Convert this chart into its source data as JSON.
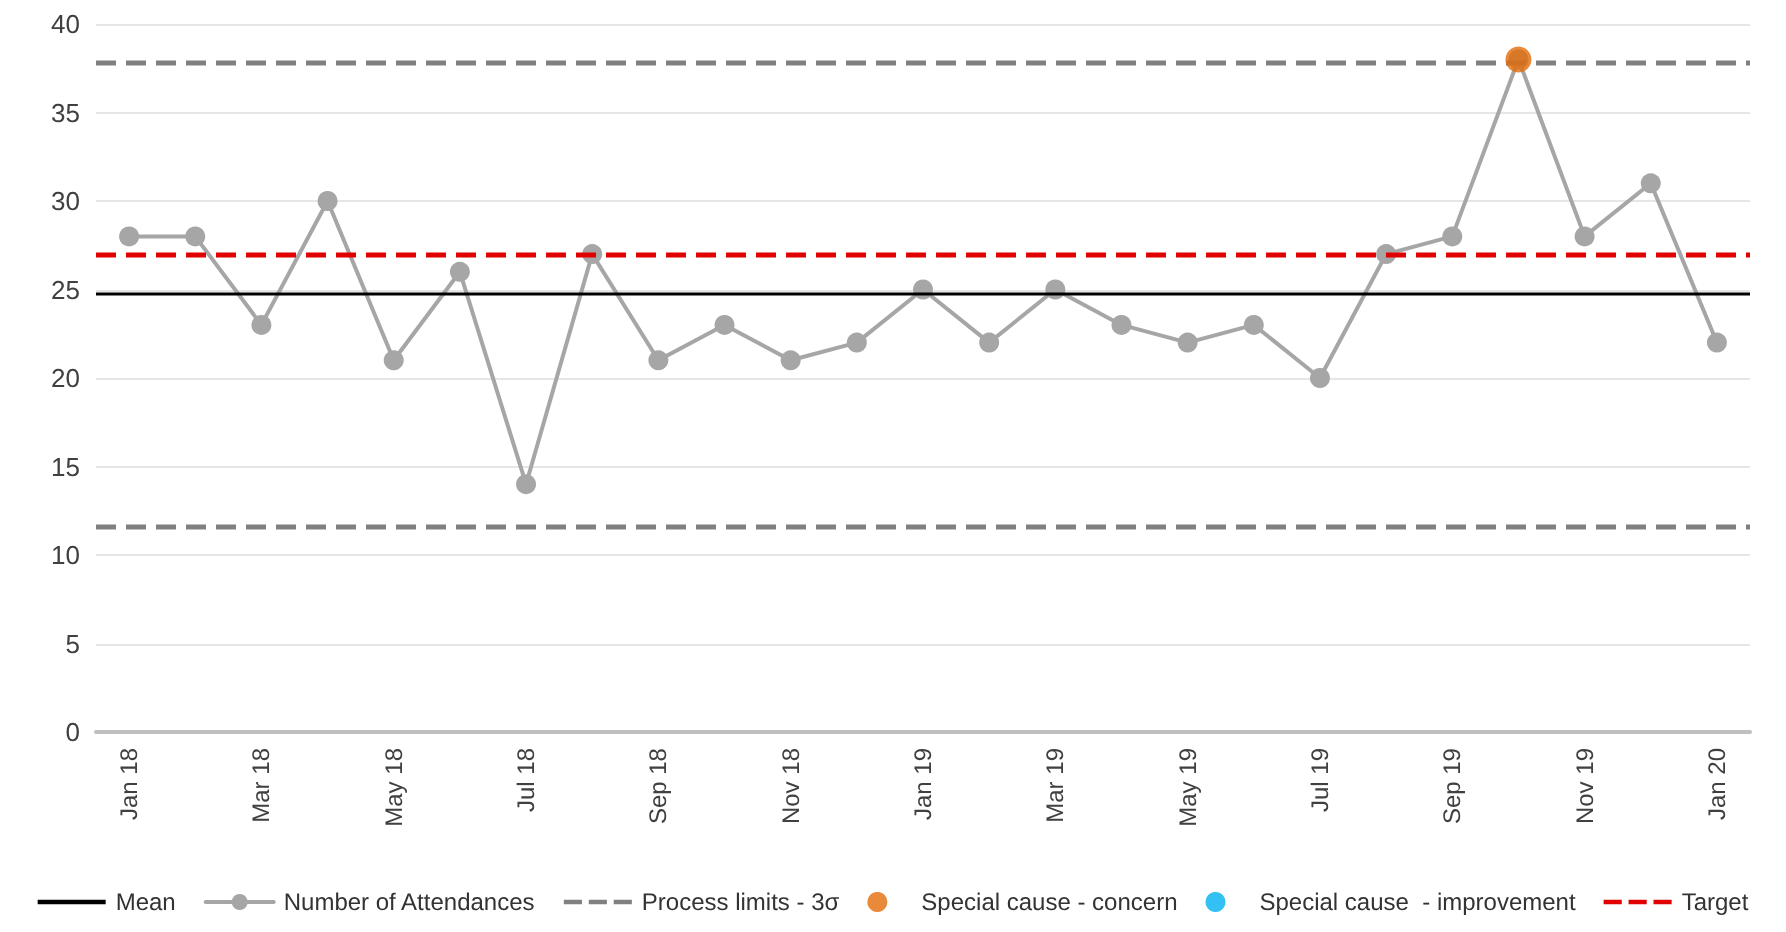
{
  "chart_data": {
    "type": "line",
    "categories": [
      "Jan 18",
      null,
      "Mar 18",
      null,
      "May 18",
      null,
      "Jul 18",
      null,
      "Sep 18",
      null,
      "Nov 18",
      null,
      "Jan 19",
      null,
      "Mar 19",
      null,
      "May 19",
      null,
      "Jul 19",
      null,
      "Sep 19",
      null,
      "Nov 19",
      null,
      "Jan 20"
    ],
    "series": [
      {
        "name": "Number of Attendances",
        "color": "#a6a6a6",
        "values": [
          28,
          28,
          23,
          30,
          21,
          26,
          14,
          27,
          21,
          23,
          21,
          22,
          25,
          22,
          25,
          23,
          22,
          23,
          20,
          27,
          28,
          38,
          28,
          31,
          22
        ]
      },
      {
        "name": "Special cause - concern",
        "type": "scatter",
        "color": "#e36c09",
        "values": [
          null,
          null,
          null,
          null,
          null,
          null,
          null,
          null,
          null,
          null,
          null,
          null,
          null,
          null,
          null,
          null,
          null,
          null,
          null,
          null,
          null,
          38,
          null,
          null,
          null
        ]
      },
      {
        "name": "Special cause  - improvement",
        "type": "scatter",
        "color": "#00b0f0",
        "values": [
          null,
          null,
          null,
          null,
          null,
          null,
          null,
          null,
          null,
          null,
          null,
          null,
          null,
          null,
          null,
          null,
          null,
          null,
          null,
          null,
          null,
          null,
          null,
          null,
          null
        ]
      }
    ],
    "ref_lines": [
      {
        "axis": "y",
        "value": 24.8,
        "label": "Mean",
        "color": "#000000",
        "line_style": "solid"
      },
      {
        "axis": "y",
        "value": 37.8,
        "label": "Process limits - 3σ",
        "color": "#808080",
        "line_style": "dashed"
      },
      {
        "axis": "y",
        "value": 11.6,
        "color": "#808080",
        "line_style": "dashed"
      },
      {
        "axis": "y",
        "value": 27,
        "label": "Target",
        "color": "#e00000",
        "line_style": "dashed"
      }
    ],
    "ylim": [
      0,
      40
    ],
    "yticks": [
      0,
      5,
      10,
      15,
      20,
      25,
      30,
      35,
      40
    ],
    "grid": "y",
    "legend": "bottom",
    "marker": "circle",
    "line_style": "solid"
  }
}
